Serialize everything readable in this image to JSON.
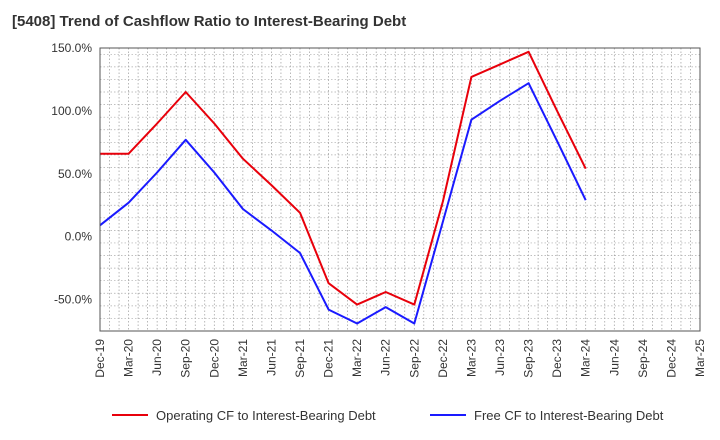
{
  "chart_data": {
    "type": "line",
    "title": "[5408]  Trend of Cashflow Ratio to Interest-Bearing Debt",
    "xlabel": "",
    "ylabel": "",
    "x": [
      "Dec-19",
      "Mar-20",
      "Jun-20",
      "Sep-20",
      "Dec-20",
      "Mar-21",
      "Jun-21",
      "Sep-21",
      "Dec-21",
      "Mar-22",
      "Jun-22",
      "Sep-22",
      "Dec-22",
      "Mar-23",
      "Jun-23",
      "Sep-23",
      "Dec-23",
      "Mar-24",
      "Jun-24",
      "Sep-24",
      "Dec-24",
      "Mar-25"
    ],
    "ylim": [
      -75,
      150
    ],
    "yticks": [
      150,
      100,
      50,
      0,
      -50
    ],
    "ytick_labels": [
      "150.0%",
      "100.0%",
      "50.0%",
      "0.0%",
      "-50.0%"
    ],
    "grid": true,
    "legend_position": "bottom",
    "series": [
      {
        "name": "Operating CF to Interest-Bearing Debt",
        "color": "#e8000b",
        "values": [
          66,
          66,
          90,
          115,
          90,
          62,
          41,
          19,
          -37,
          -54,
          -44,
          -54,
          28,
          127,
          137,
          147,
          100,
          54,
          null,
          null,
          null,
          null
        ]
      },
      {
        "name": "Free CF to Interest-Bearing Debt",
        "color": "#1a1aff",
        "values": [
          9,
          27,
          51,
          77,
          51,
          22,
          5,
          -13,
          -58,
          -69,
          -56,
          -69,
          12,
          93,
          108,
          122,
          76,
          29,
          null,
          null,
          null,
          null
        ]
      }
    ]
  }
}
